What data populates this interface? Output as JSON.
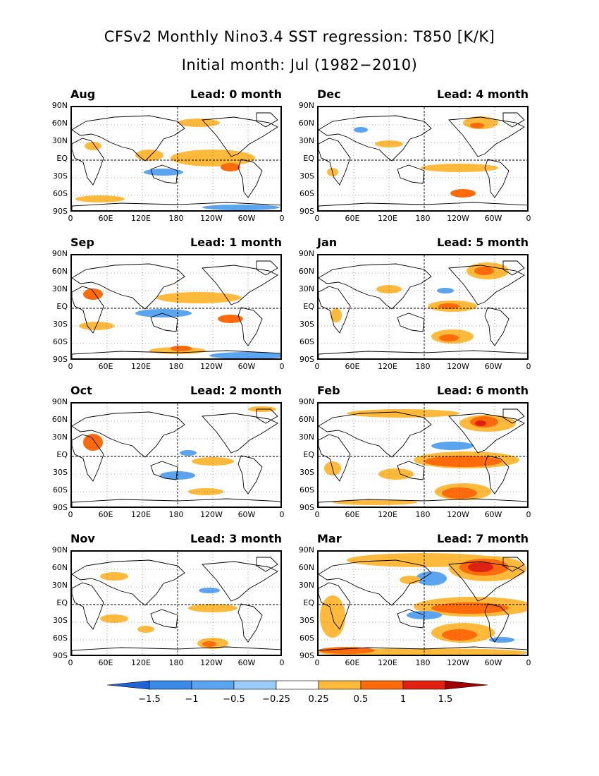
{
  "titles": {
    "line1": "CFSv2 Monthly Nino3.4 SST regression: T850 [K/K]",
    "line2": "Initial month: Jul (1982−2010)"
  },
  "lat_labels": [
    "90N",
    "60N",
    "30N",
    "EQ",
    "30S",
    "60S",
    "90S"
  ],
  "lon_labels": [
    "0",
    "60E",
    "120E",
    "180",
    "120W",
    "60W",
    "0"
  ],
  "panels": [
    {
      "month": "Aug",
      "lead": "Lead: 0 month"
    },
    {
      "month": "Dec",
      "lead": "Lead: 4 month"
    },
    {
      "month": "Sep",
      "lead": "Lead: 1 month"
    },
    {
      "month": "Jan",
      "lead": "Lead: 5 month"
    },
    {
      "month": "Oct",
      "lead": "Lead: 2 month"
    },
    {
      "month": "Feb",
      "lead": "Lead: 6 month"
    },
    {
      "month": "Nov",
      "lead": "Lead: 3 month"
    },
    {
      "month": "Mar",
      "lead": "Lead: 7 month"
    }
  ],
  "colorbar": {
    "labels": [
      "−1.5",
      "−1",
      "−0.5",
      "−0.25",
      "0.25",
      "0.5",
      "1",
      "1.5"
    ],
    "colors": [
      "#1f63d6",
      "#3a8ae8",
      "#5aa4f0",
      "#99ccf9",
      "#ffffff",
      "#ffba3c",
      "#ff6a0a",
      "#e02010",
      "#a00000"
    ]
  }
}
